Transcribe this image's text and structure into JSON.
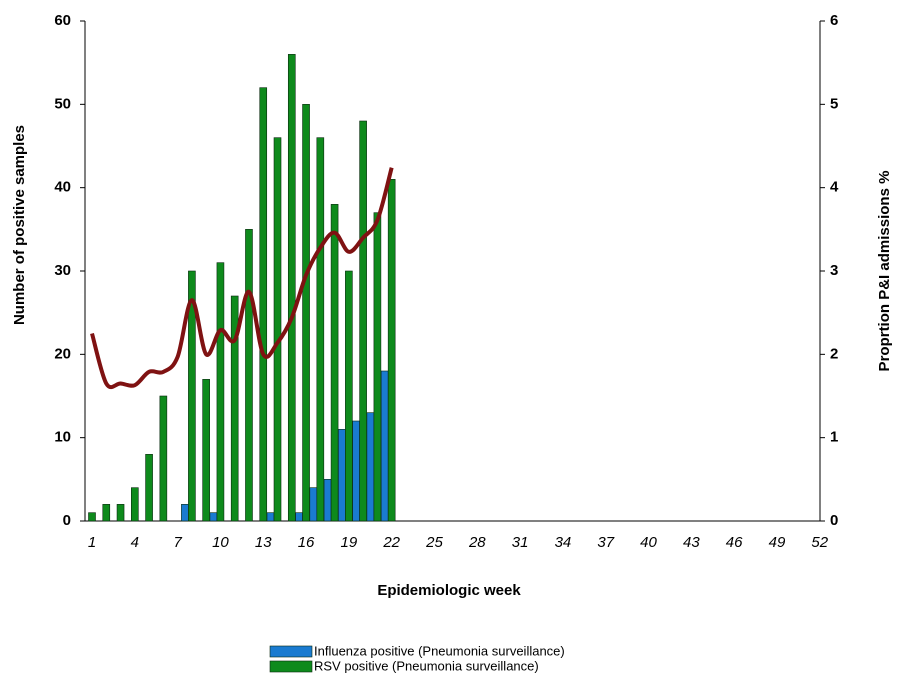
{
  "chart_data": {
    "type": "bar",
    "x_label": "Epidemiologic week",
    "y_label": "Number of positive samples",
    "y2_label": "Proprtion P&I admissions %",
    "categories": [
      "1",
      null,
      null,
      "4",
      null,
      null,
      "7",
      null,
      null,
      "10",
      null,
      null,
      "13",
      null,
      null,
      "16",
      null,
      null,
      "19",
      null,
      null,
      "22",
      null,
      null,
      "25",
      null,
      null,
      "28",
      null,
      null,
      "31",
      null,
      null,
      "34",
      null,
      null,
      "37",
      null,
      null,
      "40",
      null,
      null,
      "43",
      null,
      null,
      "46",
      null,
      null,
      "49",
      null,
      null,
      "52"
    ],
    "ylim": [
      0,
      60
    ],
    "yticks": [
      0,
      10,
      20,
      30,
      40,
      50,
      60
    ],
    "y2lim": [
      0,
      6
    ],
    "y2ticks": [
      0,
      1,
      2,
      3,
      4,
      5,
      6
    ],
    "legend": "bottom",
    "series": [
      {
        "name": "Influenza positive (Pneumonia surveillance)",
        "color": "#1a7bd0",
        "values": [
          null,
          null,
          null,
          null,
          null,
          null,
          null,
          2,
          null,
          1,
          null,
          null,
          null,
          1,
          null,
          1,
          4,
          5,
          11,
          12,
          13,
          18,
          null,
          null,
          null,
          null,
          null,
          null,
          null,
          null,
          null,
          null,
          null,
          null,
          null,
          null,
          null,
          null,
          null,
          null,
          null,
          null,
          null,
          null,
          null,
          null,
          null,
          null,
          null,
          null,
          null,
          null
        ]
      },
      {
        "name": "RSV positive (Pneumonia surveillance)",
        "color": "#0e8a1c",
        "values": [
          1,
          2,
          2,
          4,
          8,
          15,
          null,
          30,
          17,
          31,
          27,
          35,
          52,
          46,
          56,
          50,
          46,
          38,
          30,
          48,
          37,
          41,
          null,
          null,
          null,
          null,
          null,
          null,
          null,
          null,
          null,
          null,
          null,
          null,
          null,
          null,
          null,
          null,
          null,
          null,
          null,
          null,
          null,
          null,
          null,
          null,
          null,
          null,
          null,
          null,
          null,
          null
        ]
      },
      {
        "type": "line",
        "axis": "y2",
        "color": "#7f1212",
        "values": [
          2.25,
          1.65,
          1.65,
          1.63,
          1.79,
          1.79,
          1.97,
          2.65,
          2.0,
          2.29,
          2.17,
          2.75,
          2.0,
          2.14,
          2.44,
          2.95,
          3.28,
          3.46,
          3.23,
          3.4,
          3.61,
          4.24,
          null,
          null,
          null,
          null,
          null,
          null,
          null,
          null,
          null,
          null,
          null,
          null,
          null,
          null,
          null,
          null,
          null,
          null,
          null,
          null,
          null,
          null,
          null,
          null,
          null,
          null,
          null,
          null,
          null,
          null
        ]
      }
    ]
  }
}
